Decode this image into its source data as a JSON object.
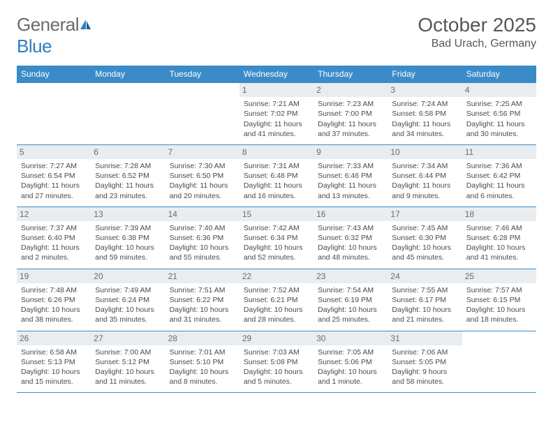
{
  "logo": {
    "textGeneral": "General",
    "textBlue": "Blue"
  },
  "title": {
    "month": "October 2025",
    "location": "Bad Urach, Germany"
  },
  "colors": {
    "headerBg": "#3b8bc9",
    "headerText": "#ffffff",
    "borderColor": "#3b8bc9",
    "dayNumBg": "#e9edf0",
    "textColor": "#4a4a4a",
    "titleColor": "#575757",
    "logoGray": "#6b6b6b",
    "logoBlue": "#2a7fc4"
  },
  "dayHeaders": [
    "Sunday",
    "Monday",
    "Tuesday",
    "Wednesday",
    "Thursday",
    "Friday",
    "Saturday"
  ],
  "weeks": [
    [
      {
        "num": "",
        "sunrise": "",
        "sunset": "",
        "daylight": ""
      },
      {
        "num": "",
        "sunrise": "",
        "sunset": "",
        "daylight": ""
      },
      {
        "num": "",
        "sunrise": "",
        "sunset": "",
        "daylight": ""
      },
      {
        "num": "1",
        "sunrise": "Sunrise: 7:21 AM",
        "sunset": "Sunset: 7:02 PM",
        "daylight": "Daylight: 11 hours and 41 minutes."
      },
      {
        "num": "2",
        "sunrise": "Sunrise: 7:23 AM",
        "sunset": "Sunset: 7:00 PM",
        "daylight": "Daylight: 11 hours and 37 minutes."
      },
      {
        "num": "3",
        "sunrise": "Sunrise: 7:24 AM",
        "sunset": "Sunset: 6:58 PM",
        "daylight": "Daylight: 11 hours and 34 minutes."
      },
      {
        "num": "4",
        "sunrise": "Sunrise: 7:25 AM",
        "sunset": "Sunset: 6:56 PM",
        "daylight": "Daylight: 11 hours and 30 minutes."
      }
    ],
    [
      {
        "num": "5",
        "sunrise": "Sunrise: 7:27 AM",
        "sunset": "Sunset: 6:54 PM",
        "daylight": "Daylight: 11 hours and 27 minutes."
      },
      {
        "num": "6",
        "sunrise": "Sunrise: 7:28 AM",
        "sunset": "Sunset: 6:52 PM",
        "daylight": "Daylight: 11 hours and 23 minutes."
      },
      {
        "num": "7",
        "sunrise": "Sunrise: 7:30 AM",
        "sunset": "Sunset: 6:50 PM",
        "daylight": "Daylight: 11 hours and 20 minutes."
      },
      {
        "num": "8",
        "sunrise": "Sunrise: 7:31 AM",
        "sunset": "Sunset: 6:48 PM",
        "daylight": "Daylight: 11 hours and 16 minutes."
      },
      {
        "num": "9",
        "sunrise": "Sunrise: 7:33 AM",
        "sunset": "Sunset: 6:46 PM",
        "daylight": "Daylight: 11 hours and 13 minutes."
      },
      {
        "num": "10",
        "sunrise": "Sunrise: 7:34 AM",
        "sunset": "Sunset: 6:44 PM",
        "daylight": "Daylight: 11 hours and 9 minutes."
      },
      {
        "num": "11",
        "sunrise": "Sunrise: 7:36 AM",
        "sunset": "Sunset: 6:42 PM",
        "daylight": "Daylight: 11 hours and 6 minutes."
      }
    ],
    [
      {
        "num": "12",
        "sunrise": "Sunrise: 7:37 AM",
        "sunset": "Sunset: 6:40 PM",
        "daylight": "Daylight: 11 hours and 2 minutes."
      },
      {
        "num": "13",
        "sunrise": "Sunrise: 7:39 AM",
        "sunset": "Sunset: 6:38 PM",
        "daylight": "Daylight: 10 hours and 59 minutes."
      },
      {
        "num": "14",
        "sunrise": "Sunrise: 7:40 AM",
        "sunset": "Sunset: 6:36 PM",
        "daylight": "Daylight: 10 hours and 55 minutes."
      },
      {
        "num": "15",
        "sunrise": "Sunrise: 7:42 AM",
        "sunset": "Sunset: 6:34 PM",
        "daylight": "Daylight: 10 hours and 52 minutes."
      },
      {
        "num": "16",
        "sunrise": "Sunrise: 7:43 AM",
        "sunset": "Sunset: 6:32 PM",
        "daylight": "Daylight: 10 hours and 48 minutes."
      },
      {
        "num": "17",
        "sunrise": "Sunrise: 7:45 AM",
        "sunset": "Sunset: 6:30 PM",
        "daylight": "Daylight: 10 hours and 45 minutes."
      },
      {
        "num": "18",
        "sunrise": "Sunrise: 7:46 AM",
        "sunset": "Sunset: 6:28 PM",
        "daylight": "Daylight: 10 hours and 41 minutes."
      }
    ],
    [
      {
        "num": "19",
        "sunrise": "Sunrise: 7:48 AM",
        "sunset": "Sunset: 6:26 PM",
        "daylight": "Daylight: 10 hours and 38 minutes."
      },
      {
        "num": "20",
        "sunrise": "Sunrise: 7:49 AM",
        "sunset": "Sunset: 6:24 PM",
        "daylight": "Daylight: 10 hours and 35 minutes."
      },
      {
        "num": "21",
        "sunrise": "Sunrise: 7:51 AM",
        "sunset": "Sunset: 6:22 PM",
        "daylight": "Daylight: 10 hours and 31 minutes."
      },
      {
        "num": "22",
        "sunrise": "Sunrise: 7:52 AM",
        "sunset": "Sunset: 6:21 PM",
        "daylight": "Daylight: 10 hours and 28 minutes."
      },
      {
        "num": "23",
        "sunrise": "Sunrise: 7:54 AM",
        "sunset": "Sunset: 6:19 PM",
        "daylight": "Daylight: 10 hours and 25 minutes."
      },
      {
        "num": "24",
        "sunrise": "Sunrise: 7:55 AM",
        "sunset": "Sunset: 6:17 PM",
        "daylight": "Daylight: 10 hours and 21 minutes."
      },
      {
        "num": "25",
        "sunrise": "Sunrise: 7:57 AM",
        "sunset": "Sunset: 6:15 PM",
        "daylight": "Daylight: 10 hours and 18 minutes."
      }
    ],
    [
      {
        "num": "26",
        "sunrise": "Sunrise: 6:58 AM",
        "sunset": "Sunset: 5:13 PM",
        "daylight": "Daylight: 10 hours and 15 minutes."
      },
      {
        "num": "27",
        "sunrise": "Sunrise: 7:00 AM",
        "sunset": "Sunset: 5:12 PM",
        "daylight": "Daylight: 10 hours and 11 minutes."
      },
      {
        "num": "28",
        "sunrise": "Sunrise: 7:01 AM",
        "sunset": "Sunset: 5:10 PM",
        "daylight": "Daylight: 10 hours and 8 minutes."
      },
      {
        "num": "29",
        "sunrise": "Sunrise: 7:03 AM",
        "sunset": "Sunset: 5:08 PM",
        "daylight": "Daylight: 10 hours and 5 minutes."
      },
      {
        "num": "30",
        "sunrise": "Sunrise: 7:05 AM",
        "sunset": "Sunset: 5:06 PM",
        "daylight": "Daylight: 10 hours and 1 minute."
      },
      {
        "num": "31",
        "sunrise": "Sunrise: 7:06 AM",
        "sunset": "Sunset: 5:05 PM",
        "daylight": "Daylight: 9 hours and 58 minutes."
      },
      {
        "num": "",
        "sunrise": "",
        "sunset": "",
        "daylight": ""
      }
    ]
  ]
}
